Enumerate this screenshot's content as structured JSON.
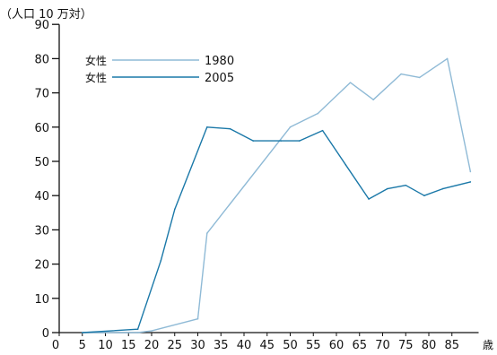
{
  "chart_data": {
    "type": "line",
    "y_unit_label": "（人口 10 万対）",
    "x_unit_label": "歳",
    "x_ticks": [
      0,
      5,
      10,
      15,
      20,
      25,
      30,
      35,
      40,
      45,
      50,
      55,
      60,
      65,
      70,
      75,
      80,
      85
    ],
    "y_ticks": [
      0,
      10,
      20,
      30,
      40,
      50,
      60,
      70,
      80,
      90
    ],
    "xlim": [
      0,
      90
    ],
    "ylim": [
      0,
      90
    ],
    "grid": false,
    "legend_placement": "top-left",
    "series": [
      {
        "legend_label": "女性",
        "year": "1980",
        "color": "#8fbad6",
        "x": [
          5,
          17,
          20,
          30,
          32,
          50,
          56,
          63,
          68,
          74,
          78,
          84,
          89
        ],
        "y": [
          0,
          0,
          0.5,
          4,
          29,
          60,
          64,
          73,
          68,
          75.5,
          74.5,
          80,
          47
        ]
      },
      {
        "legend_label": "女性",
        "year": "2005",
        "color": "#1a78a8",
        "x": [
          5,
          17,
          22,
          25,
          32,
          37,
          42,
          48,
          52,
          57,
          62,
          67,
          71,
          75,
          79,
          83,
          89
        ],
        "y": [
          0,
          1,
          21,
          36,
          60,
          59.5,
          56,
          56,
          56,
          59,
          49,
          39,
          42,
          43,
          40,
          42,
          44
        ]
      }
    ]
  }
}
